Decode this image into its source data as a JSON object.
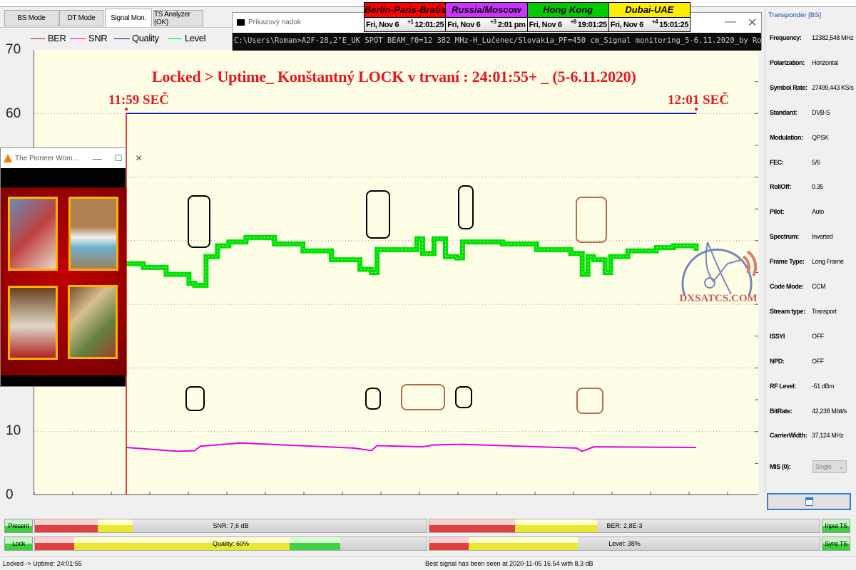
{
  "tabs": [
    {
      "label": "BS Mode"
    },
    {
      "label": "DT Mode"
    },
    {
      "label": "Signal Mon.",
      "active": true
    },
    {
      "label": "TS Analyzer (OK)"
    }
  ],
  "legend": [
    {
      "name": "BER",
      "color": "#e00000"
    },
    {
      "name": "SNR",
      "color": "#e600e6"
    },
    {
      "name": "Quality",
      "color": "#0000c8"
    },
    {
      "name": "Level",
      "color": "#00e000"
    }
  ],
  "cmd": {
    "title": "Príkazový riadok",
    "text": "C:\\Users\\Roman>A2F-28,2°E_UK SPOT BEAM_f0=12 382 MHz-H_Lučenec/Slovakia_PF=450 cm_Signal monitoring_5-6.11.2020_by Roman Dávid dxsatcs.com"
  },
  "clocks": [
    {
      "city": "Berlin-Paris-Bratislava",
      "color": "#ff0000",
      "date": "Fri, Nov 6",
      "offset": "+1",
      "time": "12:01:25"
    },
    {
      "city": "Russia/Moscow",
      "color": "#cc33ff",
      "date": "Fri, Nov 6",
      "offset": "+3",
      "time": "2:01 pm"
    },
    {
      "city": "Hong Kong",
      "color": "#00cc00",
      "date": "Fri, Nov 6",
      "offset": "+8",
      "time": "19:01:25"
    },
    {
      "city": "Dubai-UAE",
      "color": "#ffee00",
      "date": "Fri, Nov 6",
      "offset": "+4",
      "time": "15:01:25"
    }
  ],
  "vlc": {
    "title": "The Pioneer Wom..."
  },
  "chart_data": {
    "type": "line",
    "title": "Locked > Uptime_ Konštantný LOCK v trvaní : 24:01:55+ _ (5-6.11.2020)",
    "ylim": [
      0,
      70
    ],
    "yticks_visible": [
      "70",
      "60",
      "10",
      "0"
    ],
    "grid": true,
    "legend_placement": "top-left",
    "annotations": [
      {
        "label": "11:59 SEČ",
        "x": 0
      },
      {
        "label": "12:01 SEČ",
        "x": 100
      }
    ],
    "series": [
      {
        "name": "Quality",
        "color": "#0000c8",
        "points": [
          [
            0,
            60
          ],
          [
            100,
            60
          ]
        ]
      },
      {
        "name": "Level",
        "color": "#00e000",
        "points": [
          [
            0,
            36.4
          ],
          [
            3,
            35.8
          ],
          [
            7,
            34.7
          ],
          [
            11,
            33.3
          ],
          [
            12,
            33
          ],
          [
            14,
            37.5
          ],
          [
            16,
            39.2
          ],
          [
            18,
            39.8
          ],
          [
            21,
            40.5
          ],
          [
            26,
            39.5
          ],
          [
            31,
            38.4
          ],
          [
            36,
            37
          ],
          [
            41,
            35.5
          ],
          [
            43,
            35
          ],
          [
            44,
            38.6
          ],
          [
            49,
            38.6
          ],
          [
            51,
            40.3
          ],
          [
            52,
            38
          ],
          [
            54,
            40.3
          ],
          [
            56,
            37.5
          ],
          [
            58,
            37.3
          ],
          [
            59,
            39.8
          ],
          [
            66,
            39.5
          ],
          [
            72,
            38.6
          ],
          [
            78,
            38
          ],
          [
            80,
            34.7
          ],
          [
            81,
            37.5
          ],
          [
            82,
            37
          ],
          [
            84,
            35
          ],
          [
            85,
            37.5
          ],
          [
            88,
            38.4
          ],
          [
            93,
            38.9
          ],
          [
            96,
            39.2
          ],
          [
            100,
            38.4
          ]
        ]
      },
      {
        "name": "SNR",
        "color": "#e600e6",
        "points": [
          [
            0,
            7.5
          ],
          [
            9,
            6.9
          ],
          [
            12,
            7.0
          ],
          [
            13,
            7.7
          ],
          [
            20,
            8.2
          ],
          [
            40,
            7.4
          ],
          [
            43,
            7.0
          ],
          [
            44,
            7.8
          ],
          [
            52,
            7.6
          ],
          [
            54,
            7.9
          ],
          [
            59,
            8.0
          ],
          [
            79,
            7.4
          ],
          [
            80,
            6.9
          ],
          [
            82,
            7.6
          ],
          [
            100,
            7.5
          ]
        ]
      },
      {
        "name": "BER",
        "color": "#e00000",
        "points": [
          [
            0,
            0
          ],
          [
            0,
            60
          ]
        ]
      }
    ]
  },
  "logo": "DXSATCS.COM",
  "side": {
    "title": "Transponder [BS]",
    "rows": [
      {
        "k": "Frequency:",
        "v": "12382,548 MHz"
      },
      {
        "k": "Polarization:",
        "v": "Horizontal"
      },
      {
        "k": "Symbol Rate:",
        "v": "27499,443 KS/s"
      },
      {
        "k": "Standard:",
        "v": "DVB-S"
      },
      {
        "k": "Modulation:",
        "v": "QPSK"
      },
      {
        "k": "FEC:",
        "v": "5/6"
      },
      {
        "k": "RollOff:",
        "v": "0.35"
      },
      {
        "k": "Pilot:",
        "v": "Auto"
      },
      {
        "k": "Spectrum:",
        "v": "Inverted"
      },
      {
        "k": "Frame Type:",
        "v": "Long Frame"
      },
      {
        "k": "Code Mode:",
        "v": "CCM"
      },
      {
        "k": "Stream type:",
        "v": "Transport"
      },
      {
        "k": "ISSYI",
        "v": "OFF"
      },
      {
        "k": "NPD:",
        "v": "OFF"
      },
      {
        "k": "RF Level:",
        "v": "-51 dBm"
      },
      {
        "k": "BitRate:",
        "v": "42,238 Mbit/s"
      },
      {
        "k": "CarrierWidth:",
        "v": "37,124 MHz"
      }
    ],
    "mis_label": "MIS (0):",
    "mis_value": "Single"
  },
  "bars": {
    "present": "Present",
    "lock": "Lock",
    "input_ts": "Input TS",
    "sync_ts": "Sync TS",
    "snr": {
      "label": "SNR: 7,6 dB",
      "percent": 35
    },
    "ber": {
      "label": "BER: 2,8E-3",
      "percent": 43
    },
    "quality": {
      "label": "Quality: 60%",
      "percent": 60
    },
    "level": {
      "label": "Level: 38%",
      "percent": 38
    }
  },
  "status": {
    "left": "Locked -> Uptime: 24:01:55",
    "center": "Best signal has been seen at 2020-11-05 16.54 with 8,3 dB"
  }
}
